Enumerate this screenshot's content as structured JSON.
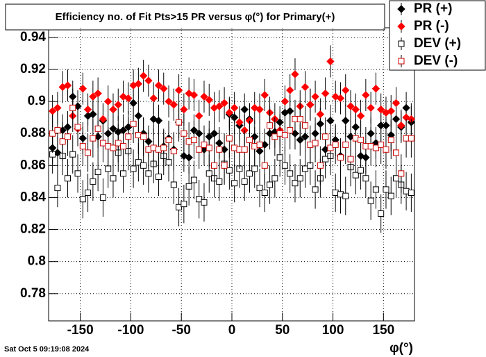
{
  "chart_data": {
    "type": "scatter",
    "title": "Efficiency no. of Fit Pts>15 PR versus φ(°) for Primary(+)",
    "x_label": "φ(°)",
    "footer": "Sat Oct  5 09:19:08 2024",
    "xlim": [
      -180,
      180
    ],
    "ylim": [
      0.763,
      0.946
    ],
    "xticks": [
      -150,
      -100,
      -50,
      0,
      50,
      100,
      150
    ],
    "yticks": [
      0.78,
      0.8,
      0.82,
      0.84,
      0.86,
      0.88,
      0.9,
      0.92,
      0.94
    ],
    "grid": true,
    "legend": "top-right",
    "x": [
      -177.5,
      -172.5,
      -167.5,
      -162.5,
      -157.5,
      -152.5,
      -147.5,
      -142.5,
      -137.5,
      -132.5,
      -127.5,
      -122.5,
      -117.5,
      -112.5,
      -107.5,
      -102.5,
      -97.5,
      -92.5,
      -87.5,
      -82.5,
      -77.5,
      -72.5,
      -67.5,
      -62.5,
      -57.5,
      -52.5,
      -47.5,
      -42.5,
      -37.5,
      -32.5,
      -27.5,
      -22.5,
      -17.5,
      -12.5,
      -7.5,
      -2.5,
      2.5,
      7.5,
      12.5,
      17.5,
      22.5,
      27.5,
      32.5,
      37.5,
      42.5,
      47.5,
      52.5,
      57.5,
      62.5,
      67.5,
      72.5,
      77.5,
      82.5,
      87.5,
      92.5,
      97.5,
      102.5,
      107.5,
      112.5,
      117.5,
      122.5,
      127.5,
      132.5,
      137.5,
      142.5,
      147.5,
      152.5,
      157.5,
      162.5,
      167.5,
      172.5,
      177.5
    ],
    "series": [
      {
        "name": "PR (+)",
        "color": "#000000",
        "marker": "diamond",
        "filled": true,
        "error": 0.01,
        "values": [
          0.871,
          0.868,
          0.882,
          0.884,
          0.903,
          0.897,
          0.877,
          0.891,
          0.892,
          0.878,
          0.888,
          0.88,
          0.883,
          0.881,
          0.882,
          0.884,
          0.899,
          0.891,
          0.88,
          0.875,
          0.889,
          0.888,
          0.872,
          0.877,
          0.87,
          0.887,
          0.866,
          0.865,
          0.882,
          0.88,
          0.87,
          0.878,
          0.88,
          0.874,
          0.87,
          0.892,
          0.89,
          0.885,
          0.895,
          0.889,
          0.878,
          0.869,
          0.873,
          0.88,
          0.881,
          0.887,
          0.893,
          0.894,
          0.88,
          0.876,
          0.878,
          0.898,
          0.88,
          0.886,
          0.87,
          0.888,
          0.876,
          0.866,
          0.888,
          0.878,
          0.884,
          0.866,
          0.865,
          0.88,
          0.874,
          0.885,
          0.885,
          0.879,
          0.889,
          0.884,
          0.896,
          0.887
        ]
      },
      {
        "name": "PR (-)",
        "color": "#ff0000",
        "marker": "diamond",
        "filled": true,
        "error": 0.01,
        "values": [
          0.894,
          0.896,
          0.909,
          0.91,
          0.891,
          0.883,
          0.908,
          0.895,
          0.903,
          0.905,
          0.889,
          0.9,
          0.895,
          0.898,
          0.903,
          0.902,
          0.91,
          0.911,
          0.916,
          0.913,
          0.902,
          0.91,
          0.908,
          0.9,
          0.898,
          0.907,
          0.895,
          0.905,
          0.904,
          0.891,
          0.903,
          0.901,
          0.896,
          0.897,
          0.899,
          0.893,
          0.896,
          0.887,
          0.882,
          0.888,
          0.896,
          0.895,
          0.904,
          0.893,
          0.889,
          0.882,
          0.9,
          0.907,
          0.917,
          0.897,
          0.909,
          0.898,
          0.903,
          0.892,
          0.905,
          0.925,
          0.903,
          0.902,
          0.907,
          0.897,
          0.895,
          0.891,
          0.904,
          0.896,
          0.908,
          0.895,
          0.893,
          0.894,
          0.899,
          0.885,
          0.89,
          0.889
        ]
      },
      {
        "name": "DEV (+)",
        "color": "#000000",
        "marker": "square",
        "filled": false,
        "error": 0.012,
        "values": [
          0.867,
          0.846,
          0.866,
          0.852,
          0.867,
          0.855,
          0.839,
          0.843,
          0.85,
          0.856,
          0.84,
          0.858,
          0.852,
          0.868,
          0.855,
          0.869,
          0.858,
          0.862,
          0.86,
          0.855,
          0.861,
          0.853,
          0.866,
          0.862,
          0.848,
          0.834,
          0.836,
          0.847,
          0.851,
          0.839,
          0.837,
          0.855,
          0.852,
          0.85,
          0.861,
          0.857,
          0.849,
          0.858,
          0.85,
          0.855,
          0.858,
          0.846,
          0.843,
          0.848,
          0.852,
          0.865,
          0.86,
          0.855,
          0.849,
          0.852,
          0.858,
          0.86,
          0.845,
          0.852,
          0.864,
          0.866,
          0.843,
          0.842,
          0.841,
          0.859,
          0.854,
          0.857,
          0.852,
          0.838,
          0.845,
          0.83,
          0.845,
          0.841,
          0.852,
          0.848,
          0.844,
          0.843
        ]
      },
      {
        "name": "DEV (-)",
        "color": "#cc0000",
        "marker": "square",
        "filled": false,
        "error": 0.012,
        "values": [
          0.88,
          0.882,
          0.875,
          0.878,
          0.896,
          0.884,
          0.872,
          0.868,
          0.877,
          0.883,
          0.874,
          0.872,
          0.871,
          0.874,
          0.872,
          0.878,
          0.886,
          0.879,
          0.878,
          0.87,
          0.871,
          0.87,
          0.871,
          0.876,
          0.869,
          0.887,
          0.88,
          0.875,
          0.876,
          0.87,
          0.873,
          0.871,
          0.86,
          0.87,
          0.86,
          0.877,
          0.871,
          0.87,
          0.87,
          0.876,
          0.872,
          0.873,
          0.86,
          0.885,
          0.878,
          0.88,
          0.879,
          0.882,
          0.889,
          0.889,
          0.885,
          0.873,
          0.874,
          0.86,
          0.878,
          0.871,
          0.873,
          0.865,
          0.873,
          0.864,
          0.877,
          0.876,
          0.872,
          0.872,
          0.871,
          0.873,
          0.87,
          0.876,
          0.868,
          0.855,
          0.877,
          0.877
        ]
      }
    ]
  }
}
